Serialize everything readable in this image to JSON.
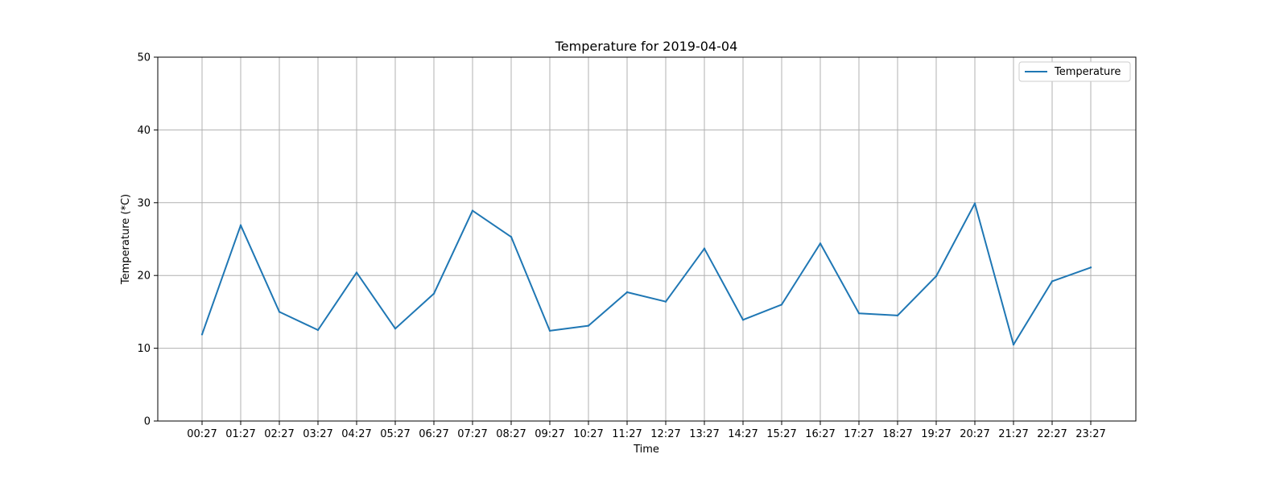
{
  "chart_data": {
    "type": "line",
    "title": "Temperature for 2019-04-04",
    "xlabel": "Time",
    "ylabel": "Temperature (*C)",
    "categories": [
      "00:27",
      "01:27",
      "02:27",
      "03:27",
      "04:27",
      "05:27",
      "06:27",
      "07:27",
      "08:27",
      "09:27",
      "10:27",
      "11:27",
      "12:27",
      "13:27",
      "14:27",
      "15:27",
      "16:27",
      "17:27",
      "18:27",
      "19:27",
      "20:27",
      "21:27",
      "22:27",
      "23:27"
    ],
    "series": [
      {
        "name": "Temperature",
        "color": "#1f77b4",
        "values": [
          11.9,
          26.9,
          15.0,
          12.5,
          20.4,
          12.7,
          17.5,
          28.9,
          25.3,
          12.4,
          13.1,
          17.7,
          16.4,
          23.7,
          13.9,
          16.0,
          24.4,
          14.8,
          14.5,
          19.9,
          29.9,
          10.5,
          19.2,
          21.1
        ]
      }
    ],
    "ylim": [
      0,
      50
    ],
    "yticks": [
      0,
      10,
      20,
      30,
      40,
      50
    ],
    "grid": true,
    "legend_position": "top-right",
    "grid_color": "#b0b0b0"
  }
}
